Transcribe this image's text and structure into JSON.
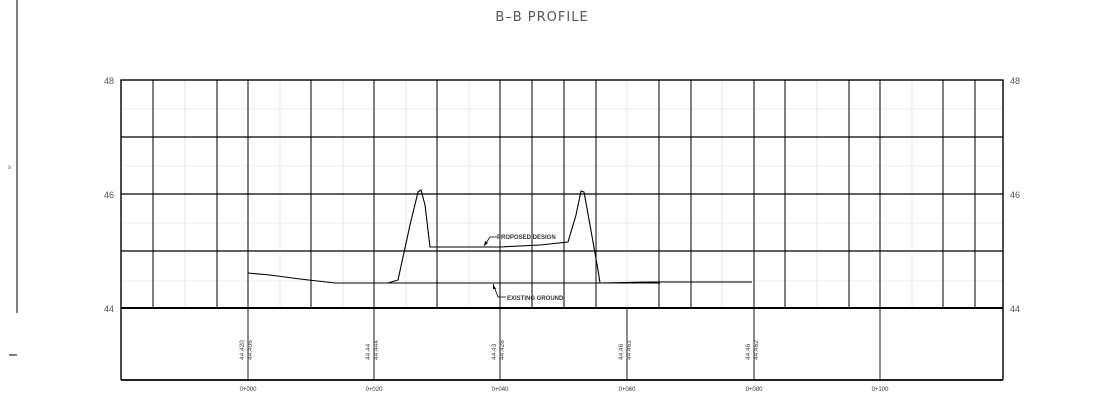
{
  "drawing": {
    "title": "B–B PROFILE",
    "y_axis_left": [
      "48",
      "46",
      "44"
    ],
    "y_axis_right": [
      "48",
      "46",
      "44"
    ],
    "margin_mark": "s",
    "callouts": {
      "proposed": "PROPOSED DESIGN",
      "existing": "EXISTING GROUND"
    },
    "elevations": [
      [
        "44.420",
        "44.406"
      ],
      [
        "44.44",
        "44.444"
      ],
      [
        "44.43",
        "44.428"
      ],
      [
        "44.46",
        "44.461"
      ],
      [
        "44.46",
        "44.462"
      ]
    ],
    "chainages": [
      "0+000",
      "0+020",
      "0+040",
      "0+060",
      "0+080",
      "0+100"
    ]
  },
  "colors": {
    "line": "#000000",
    "grid_minor": "#d8d8d8",
    "text": "#555555"
  }
}
